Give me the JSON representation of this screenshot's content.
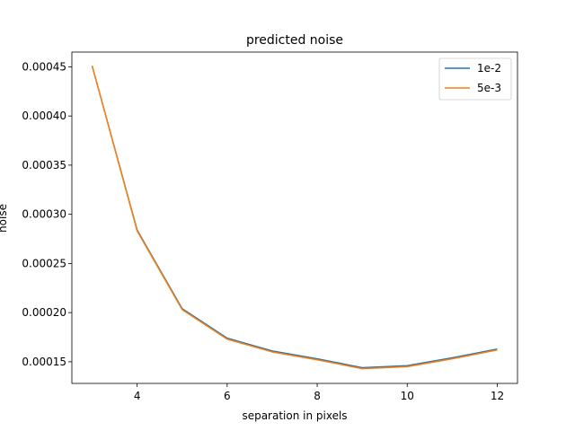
{
  "chart_data": {
    "type": "line",
    "title": "predicted noise",
    "xlabel": "separation in pixels",
    "ylabel": "noise",
    "xlim": [
      2.55,
      12.45
    ],
    "ylim": [
      0.000128,
      0.000465
    ],
    "x_ticks": [
      4,
      6,
      8,
      10,
      12
    ],
    "x_tick_labels": [
      "4",
      "6",
      "8",
      "10",
      "12"
    ],
    "y_ticks": [
      0.00015,
      0.0002,
      0.00025,
      0.0003,
      0.00035,
      0.0004,
      0.00045
    ],
    "y_tick_labels": [
      "0.00015",
      "0.00020",
      "0.00025",
      "0.00030",
      "0.00035",
      "0.00040",
      "0.00045"
    ],
    "grid": false,
    "legend_position": "upper right",
    "x": [
      3,
      4,
      5,
      6,
      7,
      8,
      9,
      10,
      11,
      12
    ],
    "series": [
      {
        "name": "1e-2",
        "color": "#1f77b4",
        "values": [
          0.000451,
          0.000284,
          0.000204,
          0.000174,
          0.000161,
          0.000153,
          0.000144,
          0.000146,
          0.000154,
          0.000163
        ]
      },
      {
        "name": "5e-3",
        "color": "#ff7f0e",
        "values": [
          0.000451,
          0.000283,
          0.000203,
          0.000173,
          0.00016,
          0.000152,
          0.000143,
          0.000145,
          0.000153,
          0.000162
        ]
      }
    ]
  }
}
